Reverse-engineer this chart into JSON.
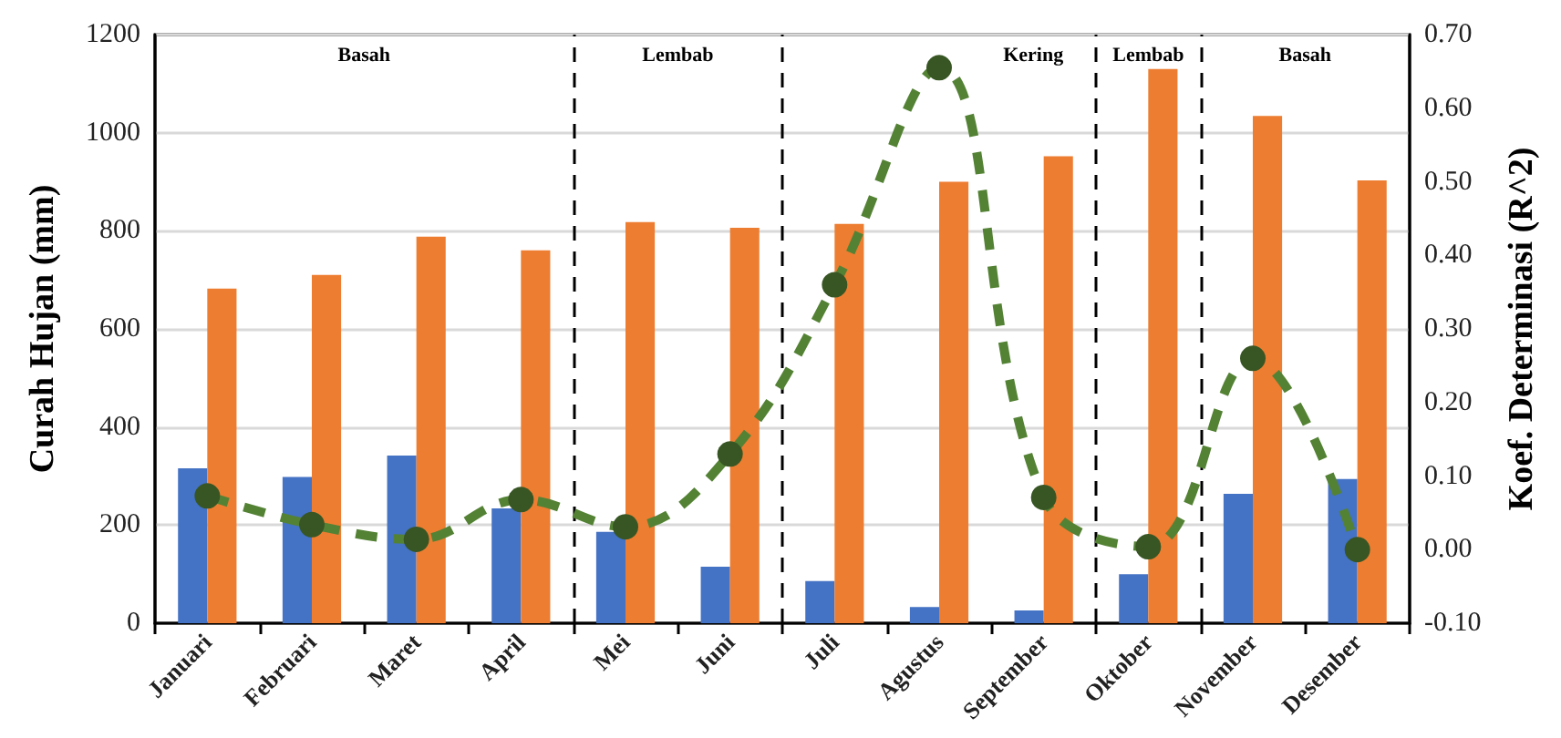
{
  "chart_data": {
    "type": "bar",
    "ylabel": "Curah Hujan (mm)",
    "y2label": "Koef. Determinasi (R^2)",
    "categories": [
      "Januari",
      "Februari",
      "Maret",
      "April",
      "Mei",
      "Juni",
      "Juli",
      "Agustus",
      "September",
      "Oktober",
      "November",
      "Desember"
    ],
    "series": [
      {
        "color": "#4472c4",
        "values": [
          316,
          298,
          342,
          234,
          186,
          115,
          86,
          33,
          26,
          100,
          264,
          294
        ]
      },
      {
        "color": "#ed7d31",
        "values": [
          682,
          710,
          788,
          760,
          818,
          806,
          814,
          900,
          952,
          1130,
          1034,
          903
        ]
      },
      {
        "type": "line",
        "axis": "y2",
        "color": "#548235",
        "marker": "circle",
        "line_style": "dashed",
        "values": [
          0.073,
          0.034,
          0.014,
          0.068,
          0.031,
          0.13,
          0.36,
          0.655,
          0.071,
          0.004,
          0.26,
          0.0
        ]
      }
    ],
    "ylim": [
      0,
      1200
    ],
    "yticks": [
      0,
      200,
      400,
      600,
      800,
      1000,
      1200
    ],
    "y2lim": [
      -0.1,
      0.7
    ],
    "y2ticks": [
      {
        "value": -0.1,
        "label": "-0.10"
      },
      {
        "value": 0,
        "label": "0.00"
      },
      {
        "value": 0.1,
        "label": "0.10"
      },
      {
        "value": 0.2,
        "label": "0.20"
      },
      {
        "value": 0.3,
        "label": "0.30"
      },
      {
        "value": 0.4,
        "label": "0.40"
      },
      {
        "value": 0.5,
        "label": "0.50"
      },
      {
        "value": 0.6,
        "label": "0.60"
      },
      {
        "value": 0.7,
        "label": "0.70"
      }
    ],
    "annotations": [
      "Basah",
      "Lembab",
      "Kering",
      "Lembab",
      "Basah"
    ],
    "grid": "y"
  }
}
